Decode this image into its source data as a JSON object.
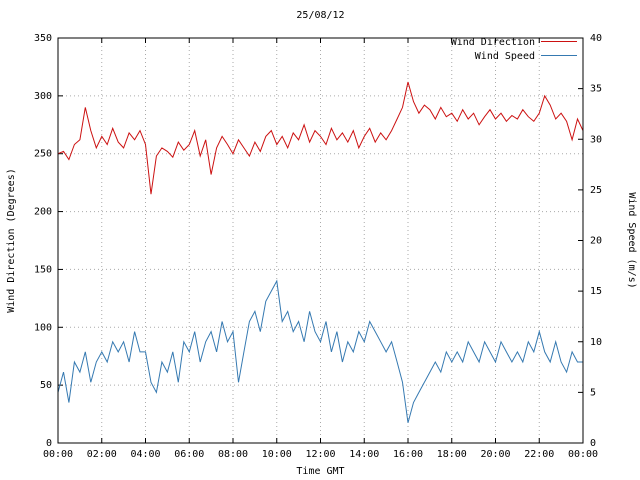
{
  "chart_data": {
    "type": "line",
    "title": "25/08/12",
    "xlabel": "Time GMT",
    "ylabel_left": "Wind Direction (Degrees)",
    "ylabel_right": "Wind Speed (m/s)",
    "grid": true,
    "legend_position": "top-right-inside",
    "x_range_hours": [
      0,
      24
    ],
    "x_ticks": [
      "00:00",
      "02:00",
      "04:00",
      "06:00",
      "08:00",
      "10:00",
      "12:00",
      "14:00",
      "16:00",
      "18:00",
      "20:00",
      "22:00",
      "00:00"
    ],
    "y_left": {
      "min": 0,
      "max": 350,
      "tick_step": 50
    },
    "y_right": {
      "min": 0,
      "max": 40,
      "tick_step": 5
    },
    "colors": {
      "grid": "#aaaaaa",
      "axis": "#000000"
    },
    "series": [
      {
        "name": "Wind Direction",
        "color": "#cc1111",
        "axis": "left",
        "x_start_hour": 0,
        "x_step_hours": 0.25,
        "values": [
          250,
          252,
          245,
          258,
          262,
          290,
          270,
          255,
          265,
          258,
          272,
          260,
          255,
          268,
          262,
          270,
          258,
          215,
          248,
          255,
          252,
          247,
          260,
          253,
          258,
          270,
          248,
          262,
          232,
          255,
          265,
          258,
          250,
          262,
          255,
          248,
          260,
          252,
          265,
          270,
          258,
          265,
          255,
          268,
          262,
          275,
          260,
          270,
          265,
          258,
          272,
          262,
          268,
          260,
          270,
          255,
          265,
          272,
          260,
          268,
          262,
          270,
          280,
          290,
          312,
          295,
          285,
          292,
          288,
          280,
          290,
          282,
          285,
          278,
          288,
          280,
          285,
          275,
          282,
          288,
          280,
          285,
          278,
          283,
          280,
          288,
          282,
          278,
          285,
          300,
          292,
          280,
          285,
          278,
          262,
          280,
          270
        ]
      },
      {
        "name": "Wind Speed",
        "color": "#3579b1",
        "axis": "right",
        "x_start_hour": 0,
        "x_step_hours": 0.25,
        "values": [
          5,
          7,
          4,
          8,
          7,
          9,
          6,
          8,
          9,
          8,
          10,
          9,
          10,
          8,
          11,
          9,
          9,
          6,
          5,
          8,
          7,
          9,
          6,
          10,
          9,
          11,
          8,
          10,
          11,
          9,
          12,
          10,
          11,
          6,
          9,
          12,
          13,
          11,
          14,
          15,
          16,
          12,
          13,
          11,
          12,
          10,
          13,
          11,
          10,
          12,
          9,
          11,
          8,
          10,
          9,
          11,
          10,
          12,
          11,
          10,
          9,
          10,
          8,
          6,
          2,
          4,
          5,
          6,
          7,
          8,
          7,
          9,
          8,
          9,
          8,
          10,
          9,
          8,
          10,
          9,
          8,
          10,
          9,
          8,
          9,
          8,
          10,
          9,
          11,
          9,
          8,
          10,
          8,
          7,
          9,
          8,
          8
        ]
      }
    ]
  }
}
